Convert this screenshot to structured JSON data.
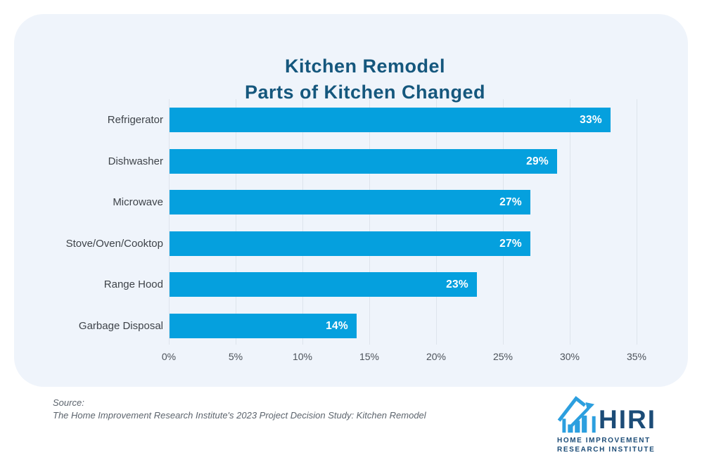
{
  "card": {
    "title_line1": "Kitchen Remodel",
    "title_line2": "Parts of Kitchen Changed"
  },
  "chart_data": {
    "type": "bar",
    "orientation": "horizontal",
    "title": "Kitchen Remodel Parts of Kitchen Changed",
    "categories": [
      "Refrigerator",
      "Dishwasher",
      "Microwave",
      "Stove/Oven/Cooktop",
      "Range Hood",
      "Garbage Disposal"
    ],
    "values": [
      33,
      29,
      27,
      27,
      23,
      14
    ],
    "value_labels": [
      "33%",
      "29%",
      "27%",
      "27%",
      "23%",
      "14%"
    ],
    "xlabel": "",
    "ylabel": "",
    "xlim": [
      0,
      35
    ],
    "x_ticks": [
      "0%",
      "5%",
      "10%",
      "15%",
      "20%",
      "25%",
      "30%",
      "35%"
    ],
    "grid": true,
    "legend": "none"
  },
  "footer": {
    "source_label": "Source:",
    "source_text": "The Home Improvement Research Institute's 2023 Project Decision Study: Kitchen Remodel"
  },
  "logo": {
    "name": "HIRI",
    "subtitle_line1": "HOME IMPROVEMENT",
    "subtitle_line2": "RESEARCH INSTITUTE"
  },
  "colors": {
    "bar": "#05A0DE",
    "card_bg": "#EFF4FB",
    "title": "#15577D",
    "logo_blue": "#2C9FDF",
    "logo_navy": "#1C4C77",
    "gridline": "#DEE4EC"
  }
}
